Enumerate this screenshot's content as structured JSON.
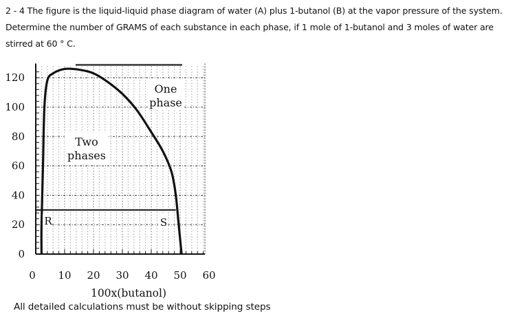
{
  "question": {
    "line1": "2 - 4 The figure is the liquid-liquid phase diagram of water (A) plus 1-butanol (B) at the vapor pressure of the system.",
    "line2": "Determine the number of GRAMS of each substance in each phase, if 1 mole of 1-butanol and 3 moles of water are",
    "line3": "stirred at 60 ° C."
  },
  "footer": "All detailed calculations must be without skipping steps",
  "chart_data": {
    "type": "line",
    "title": "",
    "xlabel": "100x(butanol)",
    "ylabel": "",
    "xlim": [
      0,
      60
    ],
    "ylim": [
      0,
      125
    ],
    "x_ticks": [
      "0",
      "10",
      "20",
      "30",
      "40",
      "50",
      "60"
    ],
    "y_ticks": [
      "0",
      "20",
      "40",
      "60",
      "80",
      "100",
      "120"
    ],
    "grid": true,
    "series": [
      {
        "name": "coexistence curve",
        "x": [
          2,
          2,
          2.5,
          3,
          4,
          6,
          10,
          15,
          20,
          25,
          30,
          35,
          40,
          44,
          47,
          48.5,
          49.5,
          50.5
        ],
        "y": [
          0,
          20,
          60,
          100,
          118,
          123,
          126,
          125.5,
          123,
          117,
          109,
          98,
          83,
          70,
          56,
          40,
          20,
          0
        ]
      },
      {
        "name": "tie line at 30",
        "x": [
          0,
          48.5
        ],
        "y": [
          30,
          30
        ]
      }
    ],
    "annotations": [
      {
        "text": "One phase",
        "x": 45,
        "y": 110
      },
      {
        "text": "Two phases",
        "x": 13,
        "y": 75
      },
      {
        "text": "R",
        "x": 3.5,
        "y": 24
      },
      {
        "text": "S",
        "x": 45.5,
        "y": 24
      }
    ]
  },
  "labels": {
    "one": "One",
    "phase": "phase",
    "two": "Two",
    "phases": "phases",
    "R": "R",
    "S": "S"
  }
}
